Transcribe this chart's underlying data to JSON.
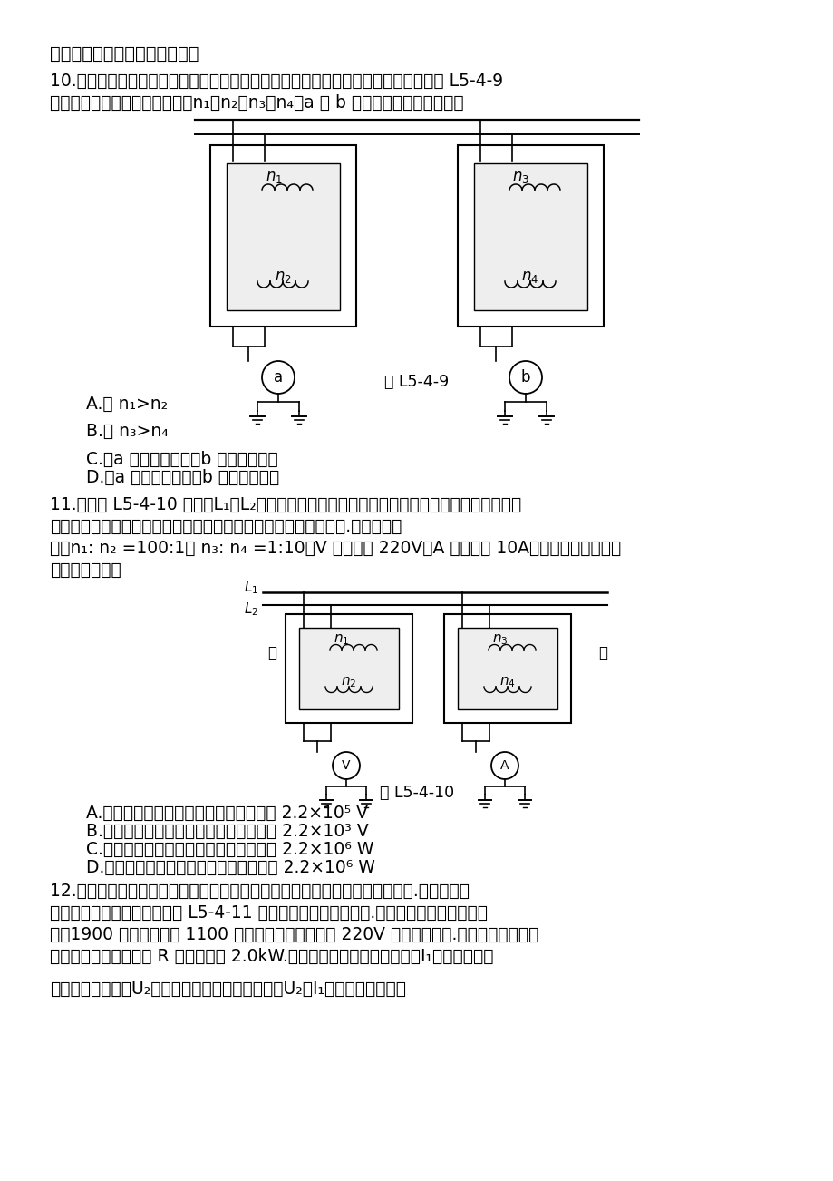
{
  "bg_color": "#ffffff",
  "title": "知识点四　　几种常见的变压器",
  "q10_line1": "10.　（多选）为了监测变电站向外输电的情况，要在变电站安装互感器，其接线如图 L5-4-9",
  "q10_line2": "　　所示，两变压器厕数分别为n₁、n₂和n₃、n₄，a 和 b 是交流电表、则（　　）",
  "fig1_label": "图 L5-4-9",
  "optA1": "A.　 n₁>n₂",
  "optB1": "B.　 n₃>n₄",
  "optC1": "C.　a 为交流电流表，b 为交流电压表",
  "optD1": "D.　a 为交流电压表，b 为交流电流表",
  "q11_line1": "11.　如图 L5-4-10 所示，L₁和L₂是输电线，甲、乙是两个互感器，通过观测接在甲、乙中的",
  "q11_line2": "　　电表读数，可以间接得到输电线两端电压和通过输电线的电流.若已知图中",
  "q11_line3": "　　n₁: n₂ =100:1， n₃: n₄ =1:10，V 表示数为 220V，A 表示数为 10A，则下列判断正确的",
  "q11_line4": "　　是（　　）",
  "fig2_label": "图 L5-4-10",
  "optA2": "A.　甲是电压互感器，输电线两端电压是 2.2×10⁵ V",
  "optB2": "B.　乙是电压互感器，输电线两端电压是 2.2×10³ V",
  "optC2": "C.　甲是电压互感器，通过输电线的功率 2.2×10⁶ W",
  "optD2": "D.　乙是电压互感器，通过输电线的功率 2.2×10⁶ W",
  "q12_line1": "12.　自耦变压器的铁芯上只绕有一个线圈，原、副线圈都只取该线圈的某部分.一升压式自",
  "q12_line2": "　　耦调压变压器的电路如图 L5-4-11 所示，其副线圈厕数可调.已知变压器线圈总厕数为",
  "q12_line3": "　　1900 厕，原线圈为 1100 厕，接在电压有效值为 220V 的交流电源上.当变压器输出电压",
  "q12_line4": "　　调至最大时，负载 R 上的功率为 2.0kW.设此时原线圈中电流有效值为I₁，负载两端电",
  "q12_line5": "　　压的有效值为U₂，且变压器是理想变压器，则U₂和I₁分别约为（　　）"
}
